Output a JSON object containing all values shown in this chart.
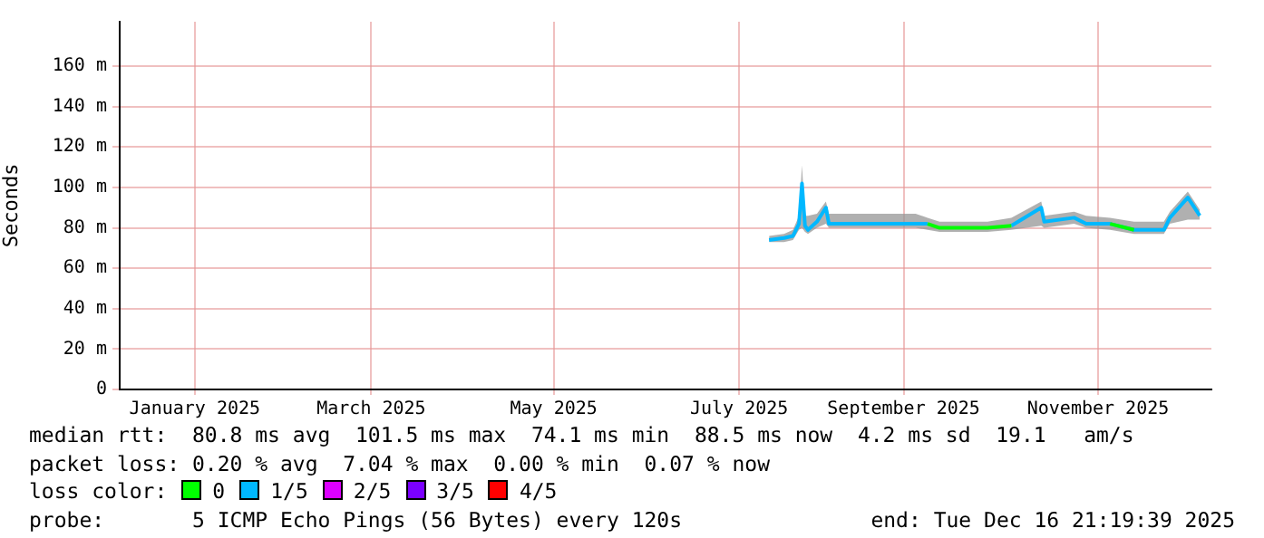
{
  "chart_data": {
    "type": "line",
    "ylabel": "Seconds",
    "ylim": [
      0,
      182
    ],
    "yticks": [
      0,
      {
        "value": 20,
        "label": "20 m"
      },
      {
        "value": 40,
        "label": "40 m"
      },
      {
        "value": 60,
        "label": "60 m"
      },
      {
        "value": 80,
        "label": "80 m"
      },
      {
        "value": 100,
        "label": "100 m"
      },
      {
        "value": 120,
        "label": "120 m"
      },
      {
        "value": 140,
        "label": "140 m"
      },
      {
        "value": 160,
        "label": "160 m"
      }
    ],
    "xlim": [
      "2024-12-16T21:19",
      "2025-12-16T21:19"
    ],
    "xticks": [
      {
        "value": "2025-01-11",
        "label": "January 2025"
      },
      {
        "value": "2025-03-11",
        "label": "March 2025"
      },
      {
        "value": "2025-05-11",
        "label": "May 2025"
      },
      {
        "value": "2025-07-12",
        "label": "July 2025"
      },
      {
        "value": "2025-09-05",
        "label": "September 2025"
      },
      {
        "value": "2025-11-09",
        "label": "November 2025"
      }
    ],
    "x": [
      "2025-07-22",
      "2025-07-27",
      "2025-07-30",
      "2025-08-01",
      "2025-08-02",
      "2025-08-03",
      "2025-08-04",
      "2025-08-07",
      "2025-08-10",
      "2025-08-11",
      "2025-08-16",
      "2025-08-28",
      "2025-09-09",
      "2025-09-13",
      "2025-09-17",
      "2025-09-25",
      "2025-10-03",
      "2025-10-11",
      "2025-10-21",
      "2025-10-22",
      "2025-11-01",
      "2025-11-05",
      "2025-11-13",
      "2025-11-21",
      "2025-12-01",
      "2025-12-03",
      "2025-12-09",
      "2025-12-13"
    ],
    "grid": true,
    "legend": "bottom",
    "legend_title": "loss color:",
    "series": [
      {
        "name": "0",
        "color": "#00ff00",
        "values": [
          null,
          null,
          null,
          null,
          null,
          null,
          null,
          null,
          null,
          null,
          null,
          null,
          null,
          82,
          80,
          80,
          80,
          81,
          null,
          null,
          null,
          null,
          82,
          79,
          null,
          null,
          null,
          null
        ]
      },
      {
        "name": "1/5",
        "color": "#00b8ff",
        "values": [
          74,
          75,
          76,
          82,
          102,
          81,
          79,
          83,
          90,
          82,
          82,
          82,
          82,
          82,
          null,
          null,
          null,
          81,
          90,
          83,
          85,
          82,
          82,
          79,
          79,
          85,
          95,
          86
        ],
        "lower": [
          73,
          73,
          74,
          79,
          80,
          78,
          77,
          80,
          82,
          80,
          80,
          80,
          80,
          79,
          78,
          78,
          78,
          79,
          81,
          80,
          82,
          80,
          79,
          77,
          77,
          82,
          84,
          84
        ],
        "upper": [
          76,
          77,
          79,
          86,
          111,
          86,
          86,
          87,
          93,
          87,
          87,
          87,
          87,
          85,
          83,
          83,
          83,
          85,
          93,
          86,
          88,
          86,
          85,
          83,
          83,
          88,
          98,
          89
        ]
      },
      {
        "name": "2/5",
        "color": "#dd00ff",
        "values": [
          null,
          null,
          null,
          null,
          null,
          null,
          null,
          null,
          null,
          null,
          null,
          null,
          null,
          null,
          null,
          null,
          null,
          null,
          null,
          null,
          null,
          null,
          null,
          null,
          null,
          null,
          null,
          null
        ]
      },
      {
        "name": "3/5",
        "color": "#7b00ff",
        "values": [
          null,
          null,
          null,
          null,
          null,
          null,
          null,
          null,
          null,
          null,
          null,
          null,
          null,
          null,
          null,
          null,
          null,
          null,
          null,
          null,
          null,
          null,
          null,
          null,
          null,
          null,
          null,
          null
        ]
      },
      {
        "name": "4/5",
        "color": "#ff0000",
        "values": [
          null,
          null,
          null,
          null,
          null,
          null,
          null,
          null,
          null,
          null,
          null,
          null,
          null,
          null,
          null,
          null,
          null,
          null,
          null,
          null,
          null,
          null,
          null,
          null,
          null,
          null,
          null,
          null
        ]
      }
    ],
    "annotations": [
      "median rtt:  80.8 ms avg  101.5 ms max  74.1 ms min  88.5 ms now  4.2 ms sd  19.1   am/s",
      "packet loss: 0.20 % avg  7.04 % max  0.00 % min  0.07 % now",
      "probe:       5 ICMP Echo Pings (56 Bytes) every 120s",
      "end: Tue Dec 16 21:19:39 2025"
    ]
  }
}
